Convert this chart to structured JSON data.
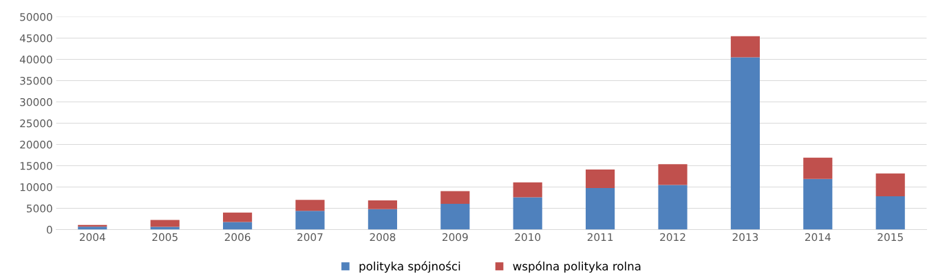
{
  "chart_data": {
    "type": "bar",
    "stacked": true,
    "categories": [
      "2004",
      "2005",
      "2006",
      "2007",
      "2008",
      "2009",
      "2010",
      "2011",
      "2012",
      "2013",
      "2014",
      "2015"
    ],
    "series": [
      {
        "name": "polityka spójności",
        "color": "#4f81bd",
        "values": [
          700,
          650,
          1800,
          4400,
          4800,
          6050,
          7600,
          9750,
          10500,
          40500,
          11900,
          7850
        ]
      },
      {
        "name": "wspólna polityka rolna",
        "color": "#c0504d",
        "values": [
          400,
          1600,
          2200,
          2600,
          2050,
          3000,
          3500,
          4350,
          4850,
          4950,
          5000,
          5350
        ]
      }
    ],
    "ylim": [
      0,
      50000
    ],
    "yticks": [
      0,
      5000,
      10000,
      15000,
      20000,
      25000,
      30000,
      35000,
      40000,
      45000,
      50000
    ],
    "grid": "y",
    "legend": "bottom"
  }
}
